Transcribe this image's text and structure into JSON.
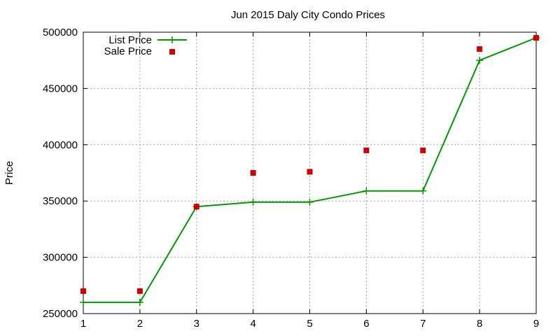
{
  "chart_data": {
    "type": "line",
    "title": "Jun 2015 Daly City Condo Prices",
    "xlabel": "",
    "ylabel": "Price",
    "xlim": [
      1,
      9
    ],
    "ylim": [
      250000,
      500000
    ],
    "x_ticks": [
      "1",
      "2",
      "3",
      "4",
      "5",
      "6",
      "7",
      "8",
      "9"
    ],
    "y_ticks": [
      "250000",
      "300000",
      "350000",
      "400000",
      "450000",
      "500000"
    ],
    "grid": true,
    "legend_position": "top-left",
    "x": [
      1,
      2,
      3,
      4,
      5,
      6,
      7,
      8,
      9
    ],
    "series": [
      {
        "name": "List Price",
        "style": "line-with-plus-markers",
        "color": "#009900",
        "values": [
          260000,
          260000,
          345000,
          349000,
          349000,
          359000,
          359000,
          475000,
          495000
        ]
      },
      {
        "name": "Sale Price",
        "style": "square-markers",
        "color": "#cc0000",
        "values": [
          270000,
          270000,
          345000,
          375000,
          376000,
          395000,
          395000,
          485000,
          495000
        ]
      }
    ]
  }
}
